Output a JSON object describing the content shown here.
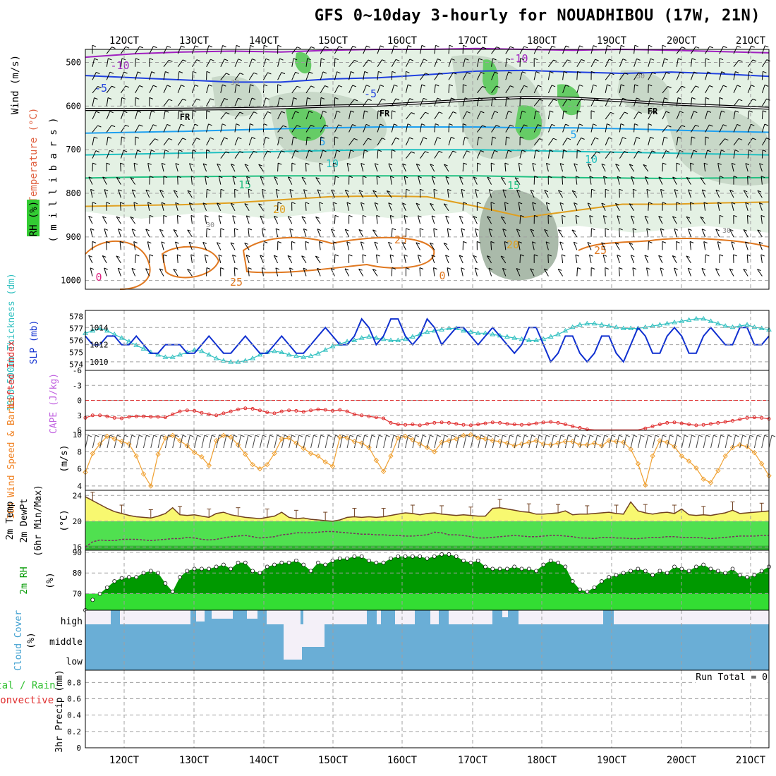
{
  "title": "GFS 0~10day 3-hourly for NOUADHIBOU (17W, 21N)",
  "date_labels": [
    "12OCT",
    "13OCT",
    "14OCT",
    "15OCT",
    "16OCT",
    "17OCT",
    "18OCT",
    "19OCT",
    "20OCT",
    "21OCT"
  ],
  "run_total": "Run Total = 0",
  "colors": {
    "grid": "#a0a0a0",
    "rh_light": "#e4f1e4",
    "rh_mid": "#c8d8c8",
    "rh_dark": "#aabaaa",
    "rh_green": "#66cc66",
    "slp": "#1030d0",
    "thickness": "#30c0c0",
    "lifted_index": "#e03030",
    "wind_speed": "#f0a030",
    "temp_fill": "#f8f870",
    "dewpt_fill": "#50e050",
    "dewpt_dark": "#30b030",
    "rh2m_fill": "#009900",
    "rh2m_light": "#33dd33",
    "cloud": "#6aaed6",
    "cloud_bg": "#f4f0f8"
  },
  "chart_data": [
    {
      "type": "contour",
      "panel": "upper-air",
      "ylabels": [
        {
          "text": "Wind (m/s)",
          "color": "#000000"
        },
        {
          "text": "Temperature (°C)",
          "color": "#e06040"
        },
        {
          "text": "RH (%)",
          "color": "#000000"
        },
        {
          "text": "( m i l l i b a r s )",
          "color": "#000000"
        }
      ],
      "yticks": [
        "500",
        "600",
        "700",
        "800",
        "900",
        "1000"
      ],
      "ylim": [
        1020,
        470
      ],
      "isotherms": [
        {
          "label": "-10",
          "color": "#a020c0",
          "p": [
            488,
            480,
            476,
            474,
            476,
            472,
            470,
            470,
            468,
            470,
            472,
            470,
            472,
            475,
            478
          ]
        },
        {
          "label": "-5",
          "color": "#2040e0",
          "p": [
            530,
            535,
            540,
            545,
            545,
            538,
            535,
            528,
            520,
            518,
            522,
            525,
            522,
            526,
            532
          ]
        },
        {
          "label": "FR",
          "color": "#000000",
          "p": [
            608,
            608,
            607,
            606,
            604,
            600,
            598,
            592,
            585,
            580,
            582,
            588,
            595,
            600,
            605
          ]
        },
        {
          "label": "5",
          "color": "#1ea0f0",
          "p": [
            662,
            660,
            658,
            655,
            652,
            650,
            648,
            648,
            648,
            650,
            650,
            652,
            655,
            658,
            660
          ]
        },
        {
          "label": "10",
          "color": "#20c0c0",
          "p": [
            712,
            710,
            708,
            706,
            704,
            702,
            700,
            700,
            700,
            702,
            704,
            706,
            708,
            710,
            712
          ]
        },
        {
          "label": "15",
          "color": "#20c080",
          "p": [
            765,
            763,
            762,
            761,
            760,
            760,
            760,
            760,
            760,
            762,
            764,
            765,
            766,
            765,
            764
          ]
        },
        {
          "label": "20",
          "color": "#e0a020",
          "p": [
            830,
            828,
            826,
            822,
            815,
            808,
            806,
            808,
            830,
            855,
            840,
            825,
            825,
            822,
            820
          ]
        }
      ],
      "isotherm_labels": [
        "-10",
        "-5",
        "FR",
        "5",
        "10",
        "15",
        "20",
        "25",
        "30",
        "0"
      ]
    },
    {
      "type": "line",
      "panel": "slp-thickness",
      "ylabels": [
        {
          "text": "1000-500mb Thickness (dm)",
          "color": "#30c0c0"
        },
        {
          "text": "SLP (mb)",
          "color": "#1030d0"
        }
      ],
      "left_ticks": [
        "578",
        "577",
        "576",
        "575",
        "574"
      ],
      "right_ticks": [
        "1014",
        "1012",
        "1010"
      ],
      "series": [
        {
          "name": "SLP (mb)",
          "ylim": [
            1009,
            1016
          ],
          "values": [
            1013,
            1012,
            1012,
            1013,
            1013,
            1012,
            1012,
            1013,
            1012,
            1011,
            1011,
            1012,
            1012,
            1012,
            1011,
            1011,
            1012,
            1013,
            1012,
            1011,
            1011,
            1012,
            1013,
            1012,
            1011,
            1011,
            1012,
            1013,
            1012,
            1011,
            1011,
            1012,
            1013,
            1014,
            1013,
            1012,
            1012,
            1013,
            1015,
            1014,
            1012,
            1013,
            1015,
            1015,
            1013,
            1012,
            1013,
            1015,
            1014,
            1012,
            1013,
            1014,
            1014,
            1013,
            1012,
            1013,
            1014,
            1013,
            1012,
            1011,
            1012,
            1014,
            1014,
            1012,
            1010,
            1011,
            1013,
            1013,
            1011,
            1010,
            1011,
            1013,
            1013,
            1011,
            1010,
            1012,
            1014,
            1013,
            1011,
            1011,
            1013,
            1014,
            1013,
            1011,
            1011,
            1013,
            1014,
            1013,
            1012,
            1012,
            1014,
            1014,
            1012,
            1012,
            1013
          ]
        },
        {
          "name": "1000-500mb Thickness (dm)",
          "ylim": [
            573.5,
            578.5
          ],
          "values": [
            576.6,
            576.8,
            577,
            576.8,
            576.5,
            576.2,
            575.9,
            575.6,
            575.3,
            575,
            574.8,
            574.6,
            574.6,
            574.8,
            575,
            575.2,
            575.1,
            574.8,
            574.5,
            574.3,
            574.2,
            574.2,
            574.3,
            574.5,
            574.8,
            575,
            575.1,
            575,
            574.8,
            574.7,
            574.6,
            574.7,
            574.9,
            575.2,
            575.5,
            575.7,
            575.9,
            576,
            576.2,
            576.3,
            576.2,
            576.1,
            576,
            576,
            576.1,
            576.3,
            576.5,
            576.7,
            576.8,
            576.9,
            577,
            577,
            576.8,
            576.7,
            576.6,
            576.6,
            576.5,
            576.4,
            576.3,
            576.2,
            576.1,
            576,
            576,
            576.1,
            576.3,
            576.5,
            576.8,
            577.1,
            577.3,
            577.4,
            577.4,
            577.3,
            577.2,
            577.1,
            577,
            577,
            577,
            577.1,
            577.2,
            577.3,
            577.4,
            577.5,
            577.6,
            577.7,
            577.8,
            577.8,
            577.6,
            577.4,
            577.2,
            577.1,
            577.2,
            577.3,
            577.1,
            577,
            576.9
          ]
        }
      ]
    },
    {
      "type": "line",
      "panel": "lifted-index",
      "ylabels": [
        {
          "text": "Lifted Index",
          "color": "#e03030"
        },
        {
          "text": "CAPE (J/kg)",
          "color": "#c060e0"
        }
      ],
      "yticks": [
        "6",
        "3",
        "0",
        "-3",
        "-6"
      ],
      "ylim": [
        6,
        -6
      ],
      "series": [
        {
          "name": "Lifted Index",
          "values": [
            3.5,
            3,
            3,
            3.2,
            3.5,
            3.6,
            3.3,
            3.2,
            3.2,
            3.3,
            3.3,
            3.4,
            2.8,
            2.2,
            2,
            2.1,
            2.5,
            2.8,
            3,
            2.6,
            2.2,
            1.8,
            1.6,
            1.7,
            2,
            2.4,
            2.6,
            2.2,
            2,
            2.1,
            2.3,
            2,
            1.8,
            1.9,
            2.1,
            1.9,
            2.2,
            2.8,
            3,
            3.2,
            3.4,
            3.6,
            4.5,
            4.8,
            4.9,
            4.8,
            5,
            4.7,
            4.5,
            4.4,
            4.5,
            4.7,
            4.9,
            5,
            4.8,
            4.6,
            4.4,
            4.5,
            4.7,
            4.8,
            4.9,
            4.8,
            4.6,
            4.4,
            4.3,
            4.5,
            4.8,
            5.2,
            5.5,
            5.8,
            5.9,
            6,
            6.1,
            6.2,
            6.3,
            6.2,
            6,
            5.6,
            5.2,
            4.8,
            4.5,
            4.4,
            4.6,
            4.8,
            5,
            4.9,
            4.7,
            4.5,
            4.3,
            4.1,
            3.8,
            3.5,
            3.4,
            3.5,
            3.7
          ]
        }
      ]
    },
    {
      "type": "line",
      "panel": "wind-10m",
      "ylabels": [
        {
          "text": "10m Wind Speed & Barbs",
          "color": "#f08020"
        },
        {
          "text": "(m/s)",
          "color": "#000000"
        }
      ],
      "yticks": [
        "10",
        "8",
        "6",
        "4"
      ],
      "ylim": [
        3.5,
        10.5
      ],
      "series": [
        {
          "name": "10m Wind Speed",
          "values": [
            5.6,
            7.8,
            8.9,
            9.8,
            9.5,
            9.2,
            8.9,
            7.5,
            5.4,
            4,
            7.7,
            9.6,
            9.9,
            9.3,
            8.7,
            7.9,
            7.4,
            6.4,
            9.3,
            9.9,
            9.7,
            8.8,
            7.7,
            6.5,
            6,
            6.5,
            7.8,
            9.5,
            9.6,
            9,
            8.4,
            7.8,
            7.5,
            6.8,
            6.3,
            9.7,
            9.6,
            9.2,
            9,
            8.5,
            7,
            5.7,
            7.5,
            9.6,
            9.8,
            9.4,
            8.9,
            8.5,
            8,
            9.1,
            9.3,
            9.5,
            9.9,
            10,
            9.6,
            9.5,
            9.3,
            9.2,
            9,
            8.7,
            8.9,
            9.1,
            9.3,
            8.9,
            8.8,
            9,
            9.2,
            9.2,
            8.8,
            8.8,
            9,
            8.7,
            9.3,
            9.2,
            9.1,
            8.3,
            6.6,
            4.1,
            7.5,
            9.3,
            9.1,
            8.6,
            7.5,
            6.9,
            6.1,
            4.8,
            4.4,
            5.8,
            7.5,
            8.5,
            8.8,
            8.6,
            7.9,
            6.6,
            5.2
          ]
        }
      ]
    },
    {
      "type": "area",
      "panel": "temp-2m",
      "ylabels": [
        {
          "text": "2m Temp",
          "color": "#000000"
        },
        {
          "text": "2m DewPt",
          "color": "#000000"
        },
        {
          "text": "(6hr Min/Max)",
          "color": "#000000"
        },
        {
          "text": "(°C)",
          "color": "#000000"
        }
      ],
      "yticks": [
        "24",
        "20",
        "16"
      ],
      "ylim": [
        15.5,
        24.8
      ],
      "series": [
        {
          "name": "2m Temp",
          "values": [
            23.8,
            23.2,
            22.6,
            22,
            21.5,
            21.2,
            20.9,
            20.7,
            20.6,
            20.5,
            20.8,
            21.2,
            22.1,
            21,
            20.9,
            21,
            20.8,
            20.6,
            21.2,
            21.4,
            21,
            20.8,
            20.6,
            20.5,
            20.4,
            20.6,
            20.8,
            21.4,
            20.6,
            20.4,
            20.5,
            20.3,
            20.2,
            20.1,
            20,
            20.2,
            20.6,
            20.7,
            20.6,
            20.7,
            20.6,
            20.7,
            20.9,
            21.1,
            21.3,
            21.2,
            21,
            21.2,
            21.3,
            21.1,
            21,
            20.9,
            21,
            20.9,
            20.8,
            20.8,
            22,
            22.1,
            21.9,
            21.7,
            21.5,
            21.4,
            21.1,
            21.1,
            21.2,
            21.3,
            21.6,
            21,
            21.1,
            21.1,
            21.2,
            21.3,
            21.4,
            21.2,
            21.1,
            23,
            21.6,
            21.3,
            21.1,
            21.3,
            21.4,
            21.2,
            21.9,
            21,
            20.9,
            21,
            20.9,
            21.1,
            21.3,
            21.7,
            21.2,
            21.3,
            21.4,
            21.5,
            21.6
          ]
        },
        {
          "name": "2m DewPt",
          "values": [
            16,
            16.8,
            17.1,
            17,
            17,
            17.2,
            17.2,
            17.2,
            17.1,
            17,
            17.1,
            17.2,
            17.3,
            17.3,
            17.5,
            17.4,
            17.2,
            17.1,
            17.2,
            17.4,
            17.6,
            17.7,
            17.8,
            17.6,
            17.4,
            17.5,
            17.6,
            17.9,
            18,
            18.2,
            18.2,
            18.2,
            18.3,
            18.4,
            18.4,
            18.3,
            18.2,
            18.1,
            18,
            18,
            17.9,
            17.9,
            17.8,
            17.8,
            17.7,
            17.7,
            17.8,
            17.9,
            18.3,
            18.2,
            17.9,
            17.9,
            17.8,
            17.6,
            17.4,
            17.4,
            17.5,
            17.6,
            17.7,
            17.8,
            17.7,
            17.6,
            17.6,
            17.7,
            17.8,
            17.8,
            17.7,
            17.6,
            17.4,
            17.4,
            17.3,
            17.5,
            17.5,
            17.4,
            17.4,
            17.3,
            17.3,
            17.4,
            17.5,
            17.5,
            17.6,
            17.6,
            17.5,
            17.5,
            17.5,
            17.4,
            17.3,
            17.4,
            17.5,
            17.6,
            17.7,
            17.7,
            17.7,
            17.8,
            17.8
          ]
        }
      ]
    },
    {
      "type": "area",
      "panel": "rh-2m",
      "ylabels": [
        {
          "text": "2m RH",
          "color": "#009900"
        },
        {
          "text": "(%)",
          "color": "#000000"
        }
      ],
      "yticks": [
        "90",
        "80",
        "70"
      ],
      "ylim": [
        62,
        91
      ],
      "series": [
        {
          "name": "2m RH",
          "values": [
            62,
            67,
            70,
            73,
            76,
            77.5,
            78,
            78,
            80,
            81,
            80,
            75,
            71,
            78,
            81,
            82,
            82,
            82,
            83,
            84,
            82,
            85,
            85,
            81,
            80,
            83,
            84,
            85,
            85,
            86,
            84,
            81,
            85,
            84,
            86,
            87,
            87,
            88,
            88,
            86,
            85,
            85,
            87,
            88,
            88,
            88,
            88,
            87,
            88,
            89,
            89,
            88,
            86,
            85,
            86,
            83,
            82,
            82,
            82,
            83,
            82,
            82,
            81,
            84,
            86,
            85,
            83,
            76,
            72,
            71,
            73,
            76,
            78,
            79,
            80,
            81,
            82,
            81,
            79,
            81,
            80,
            83,
            82,
            81,
            83,
            84,
            82,
            81,
            80,
            82,
            79,
            78,
            79,
            81,
            83
          ]
        }
      ]
    },
    {
      "type": "bar",
      "panel": "cloud-cover",
      "ylabels": [
        {
          "text": "Cloud Cover",
          "color": "#40a0d0"
        },
        {
          "text": "(%)",
          "color": "#000000"
        }
      ],
      "categories": [
        "high",
        "middle",
        "low"
      ]
    },
    {
      "type": "bar",
      "panel": "precip",
      "ylabels": [
        {
          "text": "Total / Rain",
          "color": "#30c030"
        },
        {
          "text": "Convective",
          "color": "#e03030"
        },
        {
          "text": "3hr Precip (mm)",
          "color": "#000000"
        }
      ],
      "yticks": [
        "0.8",
        "0.6",
        "0.4",
        "0.2",
        "0"
      ],
      "ylim": [
        0,
        0.95
      ],
      "series": [
        {
          "name": "Total / Rain",
          "values": []
        },
        {
          "name": "Convective",
          "values": []
        }
      ]
    }
  ]
}
